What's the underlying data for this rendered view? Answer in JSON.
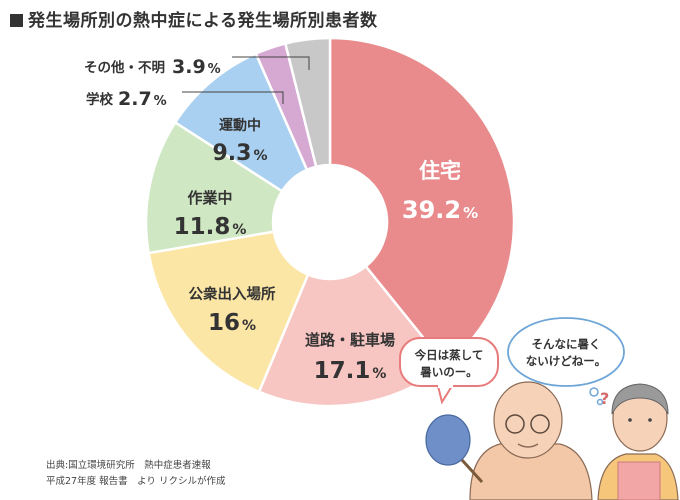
{
  "title": "■発生場所別の熱中症による発生場所別患者数",
  "source": {
    "line1": "出典:国立環境研究所　熱中症患者速報",
    "line2": "平成27年度 報告書　より リクシルが作成"
  },
  "chart_data": {
    "type": "pie",
    "title": "発生場所別の熱中症による発生場所別患者数",
    "donut": true,
    "slices": [
      {
        "label": "住宅",
        "value": 39.2,
        "display": "39.2",
        "color": "#e98b8c"
      },
      {
        "label": "道路・駐車場",
        "value": 17.1,
        "display": "17.1",
        "color": "#f7c5c2"
      },
      {
        "label": "公衆出入場所",
        "value": 16,
        "display": "16",
        "color": "#fbe6a6"
      },
      {
        "label": "作業中",
        "value": 11.8,
        "display": "11.8",
        "color": "#cfe7c2"
      },
      {
        "label": "運動中",
        "value": 9.3,
        "display": "9.3",
        "color": "#a9d0f0"
      },
      {
        "label": "学校",
        "value": 2.7,
        "display": "2.7",
        "color": "#d6a9d3"
      },
      {
        "label": "その他・不明",
        "value": 3.9,
        "display": "3.9",
        "color": "#c8c8c8"
      }
    ],
    "unit": "%"
  },
  "illustration": {
    "speech_left": [
      "今日は蒸して",
      "暑いのー。"
    ],
    "speech_right": [
      "そんなに暑く",
      "ないけどねー。"
    ]
  }
}
